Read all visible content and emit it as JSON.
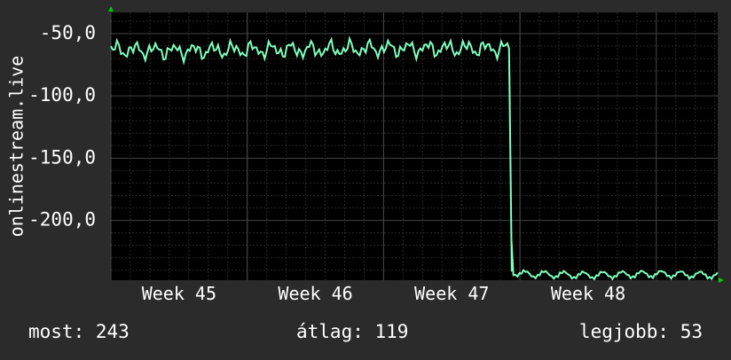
{
  "chart_data": {
    "type": "line",
    "ylabel": "onlinestream.live",
    "y_tick_labels": [
      "-50,0",
      "-100,0",
      "-150,0",
      "-200,0"
    ],
    "y_tick_values": [
      -50,
      -100,
      -150,
      -200
    ],
    "ylim": [
      -248,
      -33
    ],
    "x_tick_labels": [
      "Week 45",
      "Week 46",
      "Week 47",
      "Week 48"
    ],
    "x_tick_positions_weeks": [
      45,
      46,
      47,
      48
    ],
    "xlim_weeks": [
      44.5,
      48.95
    ],
    "grid": true,
    "colors": {
      "background": "#2b2b2b",
      "plot": "#000000",
      "grid": "#3a3a3a",
      "line": "#7fffbf",
      "axis_arrow": "#00cc00",
      "text": "#ffffff"
    },
    "series": [
      {
        "x_weeks": [
          44.5,
          45.0,
          45.5,
          46.0,
          46.5,
          47.0,
          47.42,
          47.44,
          47.5,
          48.0,
          48.5,
          48.95
        ],
        "values": [
          -63,
          -64,
          -63,
          -63,
          -62,
          -62,
          -62,
          -241,
          -243,
          -244,
          -243,
          -244
        ]
      }
    ]
  },
  "stats": {
    "now": "most: 243",
    "avg": "átlag: 119",
    "best": "legjobb: 53"
  }
}
